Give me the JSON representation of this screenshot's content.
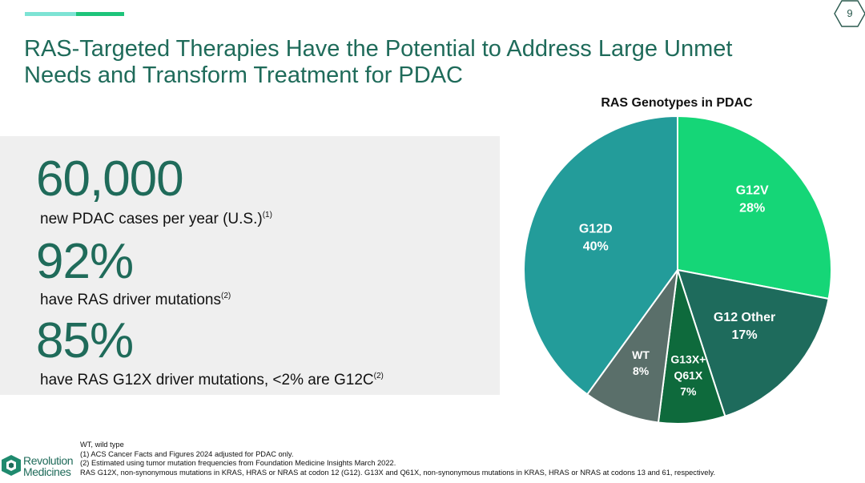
{
  "page_number": "9",
  "title_line1": "RAS-Targeted Therapies Have the Potential to Address Large Unmet",
  "title_line2": "Needs and Transform Treatment for PDAC",
  "stats": [
    {
      "value": "60,000",
      "label": "new PDAC cases per year (U.S.)",
      "ref": "(1)"
    },
    {
      "value": "92%",
      "label": "have RAS driver mutations",
      "ref": "(2)"
    },
    {
      "value": "85%",
      "label": "have RAS G12X driver mutations, <2% are G12C",
      "ref": "(2)"
    }
  ],
  "chart_data": {
    "type": "pie",
    "title": "RAS Genotypes in PDAC",
    "slices": [
      {
        "label_lines": [
          "G12V"
        ],
        "pct_label": "28%",
        "value": 28,
        "color": "#15d677"
      },
      {
        "label_lines": [
          "G12 Other"
        ],
        "pct_label": "17%",
        "value": 17,
        "color": "#1e6b5c"
      },
      {
        "label_lines": [
          "G13X+",
          "Q61X"
        ],
        "pct_label": "7%",
        "value": 7,
        "color": "#0e6a3c"
      },
      {
        "label_lines": [
          "WT"
        ],
        "pct_label": "8%",
        "value": 8,
        "color": "#5a6f6a"
      },
      {
        "label_lines": [
          "G12D"
        ],
        "pct_label": "40%",
        "value": 40,
        "color": "#239c9a"
      }
    ]
  },
  "footnotes": [
    "WT, wild type",
    "(1) ACS Cancer Facts and Figures 2024 adjusted for PDAC only.",
    "(2) Estimated using tumor mutation frequencies from Foundation Medicine Insights March 2022.",
    "RAS G12X, non-synonymous mutations in KRAS, HRAS or NRAS at codon 12 (G12).  G13X and Q61X, non-synonymous mutations in KRAS, HRAS or NRAS at codons 13 and 61, respectively."
  ],
  "logo": {
    "line1": "Revolution",
    "line2": "Medicines"
  },
  "colors": {
    "brand": "#1f6b5a",
    "panel": "#efefef"
  }
}
